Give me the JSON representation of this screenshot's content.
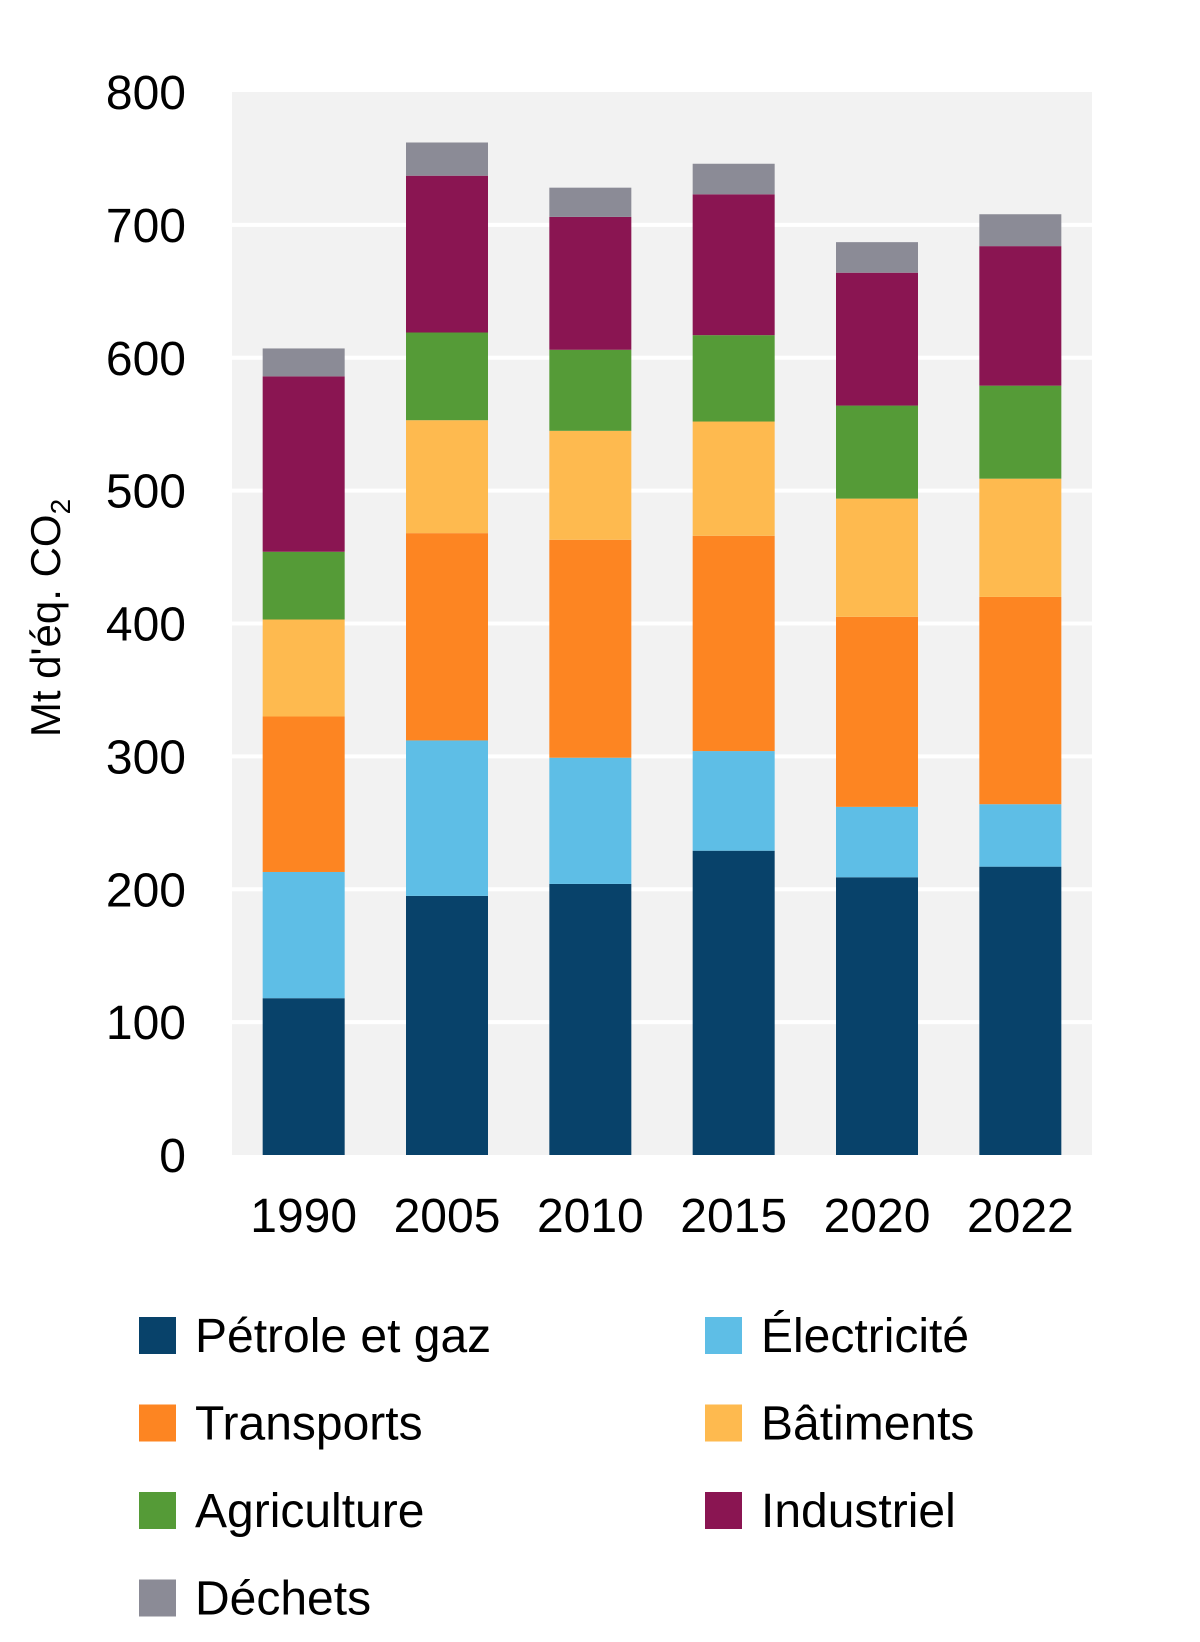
{
  "chart_data": {
    "type": "bar",
    "stacked": true,
    "title": "",
    "xlabel": "",
    "ylabel": "Mt d'éq. CO",
    "ylabel_subscript": "2",
    "ylim": [
      0,
      800
    ],
    "yticks": [
      0,
      100,
      200,
      300,
      400,
      500,
      600,
      700,
      800
    ],
    "grid": true,
    "plot_background": "#f2f2f2",
    "legend_position": "bottom",
    "categories": [
      "1990",
      "2005",
      "2010",
      "2015",
      "2020",
      "2022"
    ],
    "series": [
      {
        "name": "Pétrole et gaz",
        "color": "#08426a",
        "values": [
          118,
          195,
          204,
          229,
          209,
          217
        ]
      },
      {
        "name": "Électricité",
        "color": "#5ebee6",
        "values": [
          95,
          117,
          95,
          75,
          53,
          47
        ]
      },
      {
        "name": "Transports",
        "color": "#fd8522",
        "values": [
          117,
          156,
          164,
          162,
          143,
          156
        ]
      },
      {
        "name": "Bâtiments",
        "color": "#feba4f",
        "values": [
          73,
          85,
          82,
          86,
          89,
          89
        ]
      },
      {
        "name": "Agriculture",
        "color": "#559b37",
        "values": [
          51,
          66,
          61,
          65,
          70,
          70
        ]
      },
      {
        "name": "Industriel",
        "color": "#8a1552",
        "values": [
          132,
          118,
          100,
          106,
          100,
          105
        ]
      },
      {
        "name": "Déchets",
        "color": "#8b8b96",
        "values": [
          21,
          25,
          22,
          23,
          23,
          24
        ]
      }
    ]
  }
}
